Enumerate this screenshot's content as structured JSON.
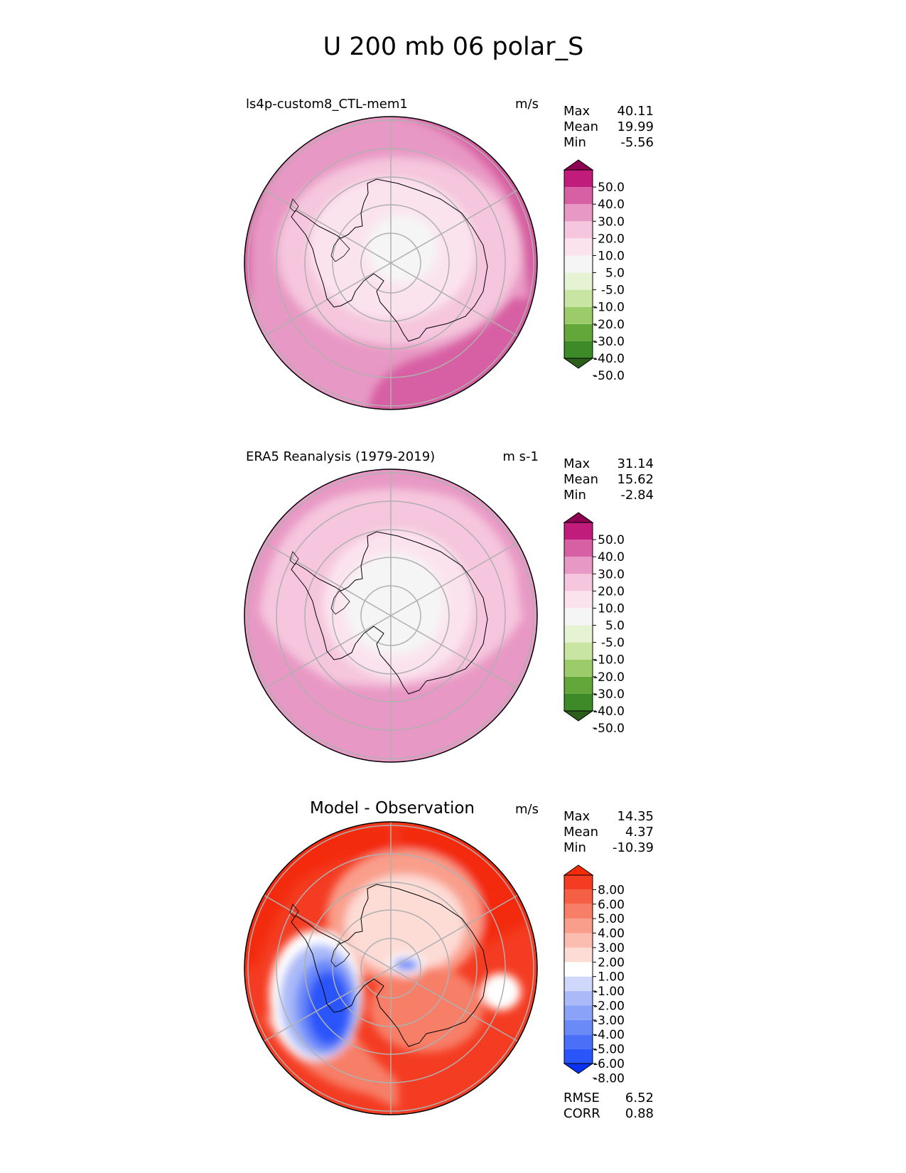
{
  "figure_title": "U 200 mb 06 polar_S",
  "colors": {
    "land_outline": "#000000",
    "grid": "#b0b0b0"
  },
  "chart_data": [
    {
      "type": "heatmap",
      "projection": "south-polar-stereographic",
      "title": "ls4p-custom8_CTL-mem1",
      "units": "m/s",
      "stats": [
        {
          "label": "Max",
          "value": "40.11"
        },
        {
          "label": "Mean",
          "value": "19.99"
        },
        {
          "label": "Min",
          "value": "-5.56"
        }
      ],
      "colorbar": {
        "levels": [
          -50,
          -40,
          -30,
          -20,
          -10,
          -5,
          5,
          10,
          20,
          30,
          40,
          50
        ],
        "tick_labels": [
          "50.0",
          "40.0",
          "30.0",
          "20.0",
          "10.0",
          "5.0",
          "-5.0",
          "-10.0",
          "-20.0",
          "-30.0",
          "-40.0",
          "-50.0"
        ],
        "colors": [
          "#2b5e1a",
          "#3e8a28",
          "#63a63a",
          "#9ccc6a",
          "#c8e5a4",
          "#e6f3d2",
          "#f5f5f5",
          "#fbe3ee",
          "#f5c6dd",
          "#e898c4",
          "#d75fa3",
          "#c11c7c",
          "#8e0152"
        ],
        "extend": "both"
      },
      "field": {
        "description": "strong westerlies (30-40) over the Southern Ocean ring, 10-20 over Antarctica, near 0 at the pole",
        "zones": [
          {
            "range": "30.0-40.0",
            "region": "outer ring, west and south-east sectors"
          },
          {
            "range": "20.0-30.0",
            "region": "outer ring elsewhere"
          },
          {
            "range": "10.0-20.0",
            "region": "continent margins"
          },
          {
            "range": "5.0-10.0",
            "region": "interior"
          },
          {
            "range": "-5.0-5.0",
            "region": "around the pole"
          }
        ]
      }
    },
    {
      "type": "heatmap",
      "projection": "south-polar-stereographic",
      "title": "ERA5 Reanalysis (1979-2019)",
      "units": "m s-1",
      "stats": [
        {
          "label": "Max",
          "value": "31.14"
        },
        {
          "label": "Mean",
          "value": "15.62"
        },
        {
          "label": "Min",
          "value": "-2.84"
        }
      ],
      "colorbar": {
        "levels": [
          -50,
          -40,
          -30,
          -20,
          -10,
          -5,
          5,
          10,
          20,
          30,
          40,
          50
        ],
        "tick_labels": [
          "50.0",
          "40.0",
          "30.0",
          "20.0",
          "10.0",
          "5.0",
          "-5.0",
          "-10.0",
          "-20.0",
          "-30.0",
          "-40.0",
          "-50.0"
        ],
        "colors": [
          "#2b5e1a",
          "#3e8a28",
          "#63a63a",
          "#9ccc6a",
          "#c8e5a4",
          "#e6f3d2",
          "#f5f5f5",
          "#fbe3ee",
          "#f5c6dd",
          "#e898c4",
          "#d75fa3",
          "#c11c7c",
          "#8e0152"
        ],
        "extend": "both"
      },
      "field": {
        "description": "20-30 in outer ring, 10-20 over most of the domain, near 0 at the pole",
        "zones": [
          {
            "range": "20.0-30.0",
            "region": "outer ring"
          },
          {
            "range": "10.0-20.0",
            "region": "mid latitudes"
          },
          {
            "range": "5.0-10.0",
            "region": "continent interior"
          },
          {
            "range": "-5.0-5.0",
            "region": "around the pole"
          }
        ]
      }
    },
    {
      "type": "heatmap",
      "projection": "south-polar-stereographic",
      "title": "Model - Observation",
      "units": "m/s",
      "stats": [
        {
          "label": "Max",
          "value": "14.35"
        },
        {
          "label": "Mean",
          "value": "4.37"
        },
        {
          "label": "Min",
          "value": "-10.39"
        }
      ],
      "metrics": [
        {
          "label": "RMSE",
          "value": "6.52"
        },
        {
          "label": "CORR",
          "value": "0.88"
        }
      ],
      "colorbar": {
        "levels": [
          -8,
          -6,
          -5,
          -4,
          -3,
          -2,
          -1,
          1,
          2,
          3,
          4,
          5,
          6,
          8
        ],
        "tick_labels": [
          "8.00",
          "6.00",
          "5.00",
          "4.00",
          "3.00",
          "2.00",
          "1.00",
          "-1.00",
          "-2.00",
          "-3.00",
          "-4.00",
          "-5.00",
          "-6.00",
          "-8.00"
        ],
        "colors": [
          "#0a32f5",
          "#2a55fa",
          "#4a70fa",
          "#6a8af8",
          "#8aa2f8",
          "#aabaf8",
          "#cfd8fb",
          "#ffffff",
          "#fddcd6",
          "#fbbdb0",
          "#f99e8b",
          "#f77f67",
          "#f55f44",
          "#f43c22",
          "#f32b08"
        ],
        "extend": "both"
      },
      "field": {
        "description": "positive bias (> 8) over most of the Southern Ocean; negative bias (< -8) west of the Antarctic Peninsula",
        "zones": [
          {
            "range": "> 8.00",
            "region": "outer ring north and east"
          },
          {
            "range": "4.00-8.00",
            "region": "southern outer ring"
          },
          {
            "range": "-1.00-1.00",
            "region": "transition belts"
          },
          {
            "range": "< -8.00",
            "region": "west of the peninsula"
          }
        ]
      }
    }
  ]
}
